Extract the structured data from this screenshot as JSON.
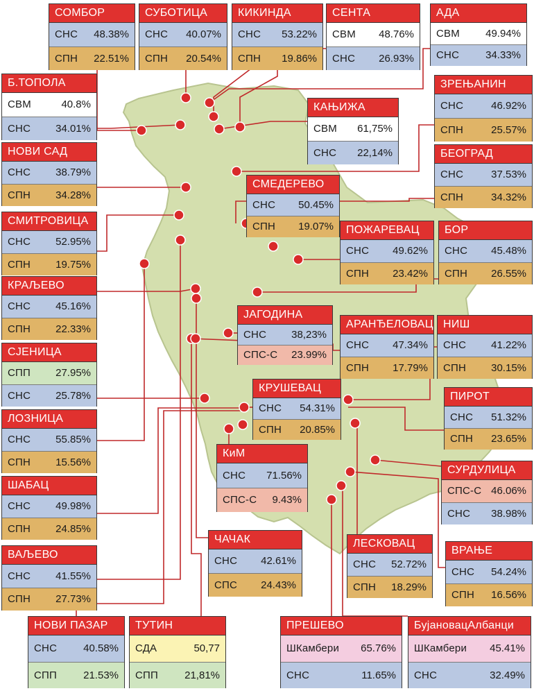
{
  "colors": {
    "map_fill": "#d4dfae",
    "map_stroke": "#b8c48f",
    "title_bg": "#e0312f",
    "dot": "#d92a2a",
    "line": "#c0282a",
    "party_colors": {
      "СНС": "#b9c8e2",
      "СПН": "#e0b467",
      "СВМ": "#ffffff",
      "СПП": "#cfe5c0",
      "СПС": "#e0b467",
      "СПС-С": "#f1b9a9",
      "СДА": "#fbf3b4",
      "ШКамбери": "#f4cde0"
    }
  },
  "municipalities": [
    {
      "id": "sombor",
      "name": "СОМБОР",
      "results": [
        {
          "party": "СНС",
          "pct": "48.38%",
          "color": "СНС"
        },
        {
          "party": "СПН",
          "pct": "22.51%",
          "color": "СПН"
        }
      ]
    },
    {
      "id": "subotica",
      "name": "СУБОТИЦА",
      "results": [
        {
          "party": "СНС",
          "pct": "40.07%",
          "color": "СНС"
        },
        {
          "party": "СПН",
          "pct": "20.54%",
          "color": "СПН"
        }
      ]
    },
    {
      "id": "kikinda",
      "name": "КИКИНДА",
      "results": [
        {
          "party": "СНС",
          "pct": "53.22%",
          "color": "СНС"
        },
        {
          "party": "СПН",
          "pct": "19.86%",
          "color": "СПН"
        }
      ]
    },
    {
      "id": "senta",
      "name": "СЕНТА",
      "results": [
        {
          "party": "СВМ",
          "pct": "48.76%",
          "color": "СВМ"
        },
        {
          "party": "СНС",
          "pct": "26.93%",
          "color": "СНС"
        }
      ]
    },
    {
      "id": "ada",
      "name": "АДА",
      "results": [
        {
          "party": "СВМ",
          "pct": "49.94%",
          "color": "СВМ"
        },
        {
          "party": "СНС",
          "pct": "34.33%",
          "color": "СНС"
        }
      ]
    },
    {
      "id": "btopola",
      "name": "Б.ТОПОЛА",
      "results": [
        {
          "party": "СВМ",
          "pct": "40.8%",
          "color": "СВМ"
        },
        {
          "party": "СНС",
          "pct": "34.01%",
          "color": "СНС"
        }
      ]
    },
    {
      "id": "kanjiza",
      "name": "КАЊИЖА",
      "results": [
        {
          "party": "СВМ",
          "pct": "61,75%",
          "color": "СВМ"
        },
        {
          "party": "СНС",
          "pct": "22,14%",
          "color": "СНС"
        }
      ]
    },
    {
      "id": "zrenjanin",
      "name": "ЗРЕЊАНИН",
      "results": [
        {
          "party": "СНС",
          "pct": "46.92%",
          "color": "СНС"
        },
        {
          "party": "СПН",
          "pct": "25.57%",
          "color": "СПН"
        }
      ]
    },
    {
      "id": "novisad",
      "name": "НОВИ САД",
      "results": [
        {
          "party": "СНС",
          "pct": "38.79%",
          "color": "СНС"
        },
        {
          "party": "СПН",
          "pct": "34.28%",
          "color": "СПН"
        }
      ]
    },
    {
      "id": "beograd",
      "name": "БЕОГРАД",
      "results": [
        {
          "party": "СНС",
          "pct": "37.53%",
          "color": "СНС"
        },
        {
          "party": "СПН",
          "pct": "34.32%",
          "color": "СПН"
        }
      ]
    },
    {
      "id": "smederevo",
      "name": "СМЕДЕРЕВО",
      "results": [
        {
          "party": "СНС",
          "pct": "50.45%",
          "color": "СНС"
        },
        {
          "party": "СПН",
          "pct": "19.07%",
          "color": "СПН"
        }
      ]
    },
    {
      "id": "smitrovica",
      "name": "СМИТРОВИЦА",
      "results": [
        {
          "party": "СНС",
          "pct": "52.95%",
          "color": "СНС"
        },
        {
          "party": "СПН",
          "pct": "19.75%",
          "color": "СПН"
        }
      ]
    },
    {
      "id": "pozarevac",
      "name": "ПОЖАРЕВАЦ",
      "results": [
        {
          "party": "СНС",
          "pct": "49.62%",
          "color": "СНС"
        },
        {
          "party": "СПН",
          "pct": "23.42%",
          "color": "СПН"
        }
      ]
    },
    {
      "id": "bor",
      "name": "БОР",
      "results": [
        {
          "party": "СНС",
          "pct": "45.48%",
          "color": "СНС"
        },
        {
          "party": "СПН",
          "pct": "26.55%",
          "color": "СПН"
        }
      ]
    },
    {
      "id": "kraljevo",
      "name": "КРАЉЕВО",
      "results": [
        {
          "party": "СНС",
          "pct": "45.16%",
          "color": "СНС"
        },
        {
          "party": "СПН",
          "pct": "22.33%",
          "color": "СПН"
        }
      ]
    },
    {
      "id": "jagodina",
      "name": "ЈАГОДИНА",
      "results": [
        {
          "party": "СНС",
          "pct": "38,23%",
          "color": "СНС"
        },
        {
          "party": "СПС-С",
          "pct": "23.99%",
          "color": "СПС-С"
        }
      ]
    },
    {
      "id": "arandjelovac",
      "name": "АРАНЂЕЛОВАЦ",
      "results": [
        {
          "party": "СНС",
          "pct": "47.34%",
          "color": "СНС"
        },
        {
          "party": "СПН",
          "pct": "17.79%",
          "color": "СПН"
        }
      ]
    },
    {
      "id": "nis",
      "name": "НИШ",
      "results": [
        {
          "party": "СНС",
          "pct": "41.22%",
          "color": "СНС"
        },
        {
          "party": "СПН",
          "pct": "30.15%",
          "color": "СПН"
        }
      ]
    },
    {
      "id": "sjenica",
      "name": "СЈЕНИЦА",
      "results": [
        {
          "party": "СПП",
          "pct": "27.95%",
          "color": "СПП"
        },
        {
          "party": "СНС",
          "pct": "25.78%",
          "color": "СНС"
        }
      ]
    },
    {
      "id": "krusevac",
      "name": "КРУШЕВАЦ",
      "results": [
        {
          "party": "СНС",
          "pct": "54.31%",
          "color": "СНС"
        },
        {
          "party": "СПН",
          "pct": "20.85%",
          "color": "СПН"
        }
      ]
    },
    {
      "id": "pirot",
      "name": "ПИРОТ",
      "results": [
        {
          "party": "СНС",
          "pct": "51.32%",
          "color": "СНС"
        },
        {
          "party": "СПН",
          "pct": "23.65%",
          "color": "СПН"
        }
      ]
    },
    {
      "id": "loznica",
      "name": "ЛОЗНИЦА",
      "results": [
        {
          "party": "СНС",
          "pct": "55.85%",
          "color": "СНС"
        },
        {
          "party": "СПН",
          "pct": "15.56%",
          "color": "СПН"
        }
      ]
    },
    {
      "id": "kim",
      "name": "КиМ",
      "results": [
        {
          "party": "СНС",
          "pct": "71.56%",
          "color": "СНС"
        },
        {
          "party": "СПС-С",
          "pct": "9.43%",
          "color": "СПС-С"
        }
      ]
    },
    {
      "id": "surdulica",
      "name": "СУРДУЛИЦА",
      "results": [
        {
          "party": "СПС-С",
          "pct": "46.06%",
          "color": "СПС-С"
        },
        {
          "party": "СНС",
          "pct": "38.98%",
          "color": "СНС"
        }
      ]
    },
    {
      "id": "sabac",
      "name": "ШАБАЦ",
      "results": [
        {
          "party": "СНС",
          "pct": "49.98%",
          "color": "СНС"
        },
        {
          "party": "СПН",
          "pct": "24.85%",
          "color": "СПН"
        }
      ]
    },
    {
      "id": "cacak",
      "name": "ЧАЧАК",
      "results": [
        {
          "party": "СНС",
          "pct": "42.61%",
          "color": "СНС"
        },
        {
          "party": "СПС",
          "pct": "24.43%",
          "color": "СПС"
        }
      ]
    },
    {
      "id": "leskovac",
      "name": "ЛЕСКОВАЦ",
      "results": [
        {
          "party": "СНС",
          "pct": "52.72%",
          "color": "СНС"
        },
        {
          "party": "СПН",
          "pct": "18.29%",
          "color": "СПН"
        }
      ]
    },
    {
      "id": "vranje",
      "name": "ВРАЊЕ",
      "results": [
        {
          "party": "СНС",
          "pct": "54.24%",
          "color": "СНС"
        },
        {
          "party": "СПН",
          "pct": "16.56%",
          "color": "СПН"
        }
      ]
    },
    {
      "id": "valjevo",
      "name": "ВАЉЕВО",
      "results": [
        {
          "party": "СНС",
          "pct": "41.55%",
          "color": "СНС"
        },
        {
          "party": "СПН",
          "pct": "27.73%",
          "color": "СПН"
        }
      ]
    },
    {
      "id": "novipazar",
      "name": "НОВИ ПАЗАР",
      "results": [
        {
          "party": "СНС",
          "pct": "40.58%",
          "color": "СНС"
        },
        {
          "party": "СПП",
          "pct": "21.53%",
          "color": "СПП"
        }
      ]
    },
    {
      "id": "tutin",
      "name": "ТУТИН",
      "results": [
        {
          "party": "СДА",
          "pct": "50,77",
          "color": "СДА"
        },
        {
          "party": "СПП",
          "pct": "21,81%",
          "color": "СПП"
        }
      ]
    },
    {
      "id": "presevo",
      "name": "ПРЕШЕВО",
      "results": [
        {
          "party": "ШКамбери",
          "pct": "65.76%",
          "color": "ШКамбери"
        },
        {
          "party": "СНС",
          "pct": "11.65%",
          "color": "СНС"
        }
      ]
    },
    {
      "id": "bujanovac",
      "name": "БујановацАлбанци",
      "results": [
        {
          "party": "ШКамбери",
          "pct": "45.41%",
          "color": "ШКамбери"
        },
        {
          "party": "СНС",
          "pct": "32.49%",
          "color": "СНС"
        }
      ]
    }
  ]
}
